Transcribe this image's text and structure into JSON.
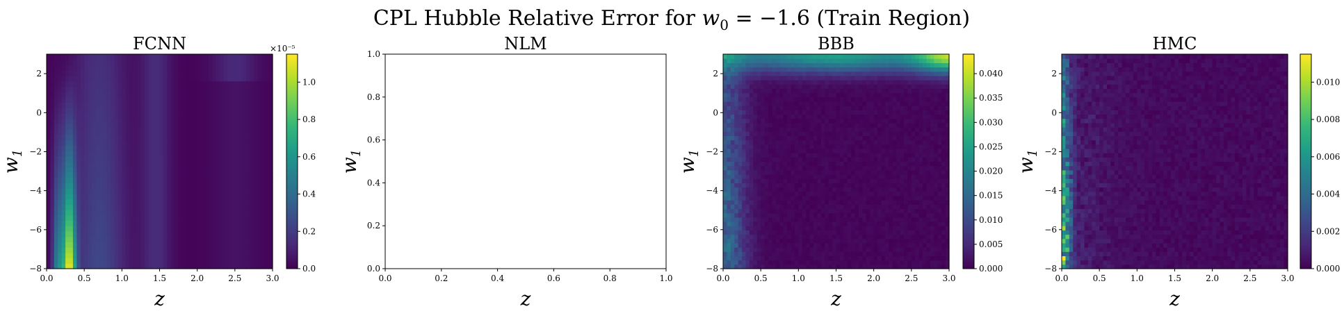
{
  "figure": {
    "title": "CPL Hubble Relative Error for w₀ = −1.6 (Train Region)",
    "title_parts": {
      "prefix": "CPL Hubble Relative Error for ",
      "var": "w",
      "sub": "0",
      "suffix": " = −1.6 (Train Region)"
    }
  },
  "colormap": {
    "name": "viridis",
    "stops": [
      "#440154",
      "#482878",
      "#3e4989",
      "#31688e",
      "#26828e",
      "#1f9e89",
      "#35b779",
      "#6ece58",
      "#b5de2b",
      "#fde725"
    ]
  },
  "chart_data": [
    {
      "type": "heatmap",
      "title": "FCNN",
      "xlabel": "z",
      "ylabel": "w₁",
      "xlim": [
        0,
        3
      ],
      "ylim": [
        -8,
        3
      ],
      "xticks": [
        "0.0",
        "0.5",
        "1.0",
        "1.5",
        "2.0",
        "2.5",
        "3.0"
      ],
      "yticks": [
        "−8",
        "−6",
        "−4",
        "−2",
        "0",
        "2"
      ],
      "colorbar": {
        "range": [
          0,
          1.15
        ],
        "ticks": [
          "0.0",
          "0.2",
          "0.4",
          "0.6",
          "0.8",
          "1.0"
        ],
        "multiplier": "×10⁻⁵"
      },
      "pattern": "fcnn",
      "peak": {
        "z": 0.3,
        "w1": -8,
        "value": 1.15
      },
      "grid": false
    },
    {
      "type": "heatmap",
      "title": "NLM",
      "xlabel": "z",
      "ylabel": "w₁",
      "xlim": [
        0,
        1
      ],
      "ylim": [
        0,
        1
      ],
      "xticks": [
        "0.0",
        "0.2",
        "0.4",
        "0.6",
        "0.8",
        "1.0"
      ],
      "yticks": [
        "0.0",
        "0.2",
        "0.4",
        "0.6",
        "0.8",
        "1.0"
      ],
      "empty": true,
      "grid": false
    },
    {
      "type": "heatmap",
      "title": "BBB",
      "xlabel": "z",
      "ylabel": "w₁",
      "xlim": [
        0,
        3
      ],
      "ylim": [
        -8,
        3
      ],
      "xticks": [
        "0.0",
        "0.5",
        "1.0",
        "1.5",
        "2.0",
        "2.5",
        "3.0"
      ],
      "yticks": [
        "−8",
        "−6",
        "−4",
        "−2",
        "0",
        "2"
      ],
      "colorbar": {
        "range": [
          0,
          0.044
        ],
        "ticks": [
          "0.000",
          "0.005",
          "0.010",
          "0.015",
          "0.020",
          "0.025",
          "0.030",
          "0.035",
          "0.040"
        ],
        "multiplier": ""
      },
      "pattern": "bbb",
      "peak": {
        "z": 3.0,
        "w1": 3,
        "value": 0.044
      },
      "grid": false
    },
    {
      "type": "heatmap",
      "title": "HMC",
      "xlabel": "z",
      "ylabel": "w₁",
      "xlim": [
        0,
        3
      ],
      "ylim": [
        -8,
        3
      ],
      "xticks": [
        "0.0",
        "0.5",
        "1.0",
        "1.5",
        "2.0",
        "2.5",
        "3.0"
      ],
      "yticks": [
        "−8",
        "−6",
        "−4",
        "−2",
        "0",
        "2"
      ],
      "colorbar": {
        "range": [
          0,
          0.0115
        ],
        "ticks": [
          "0.000",
          "0.002",
          "0.004",
          "0.006",
          "0.008",
          "0.010"
        ],
        "multiplier": ""
      },
      "pattern": "hmc",
      "peak": {
        "z": 0.05,
        "w1": -8,
        "value": 0.0115
      },
      "grid": false
    }
  ]
}
